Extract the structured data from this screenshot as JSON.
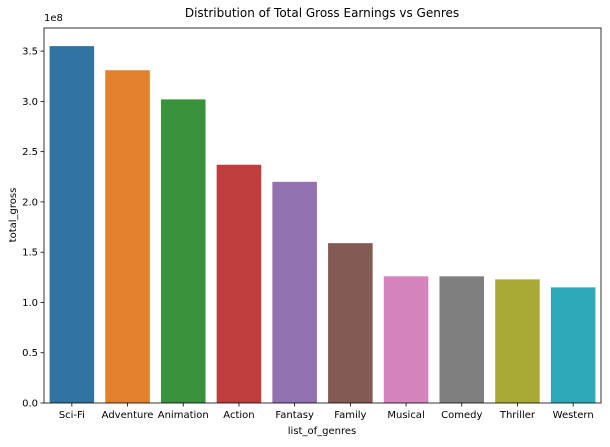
{
  "chart_data": {
    "type": "bar",
    "title": "Distribution of Total Gross Earnings vs Genres",
    "xlabel": "list_of_genres",
    "ylabel": "total_gross",
    "y_offset_label": "1e8",
    "ylim": [
      0,
      3.73
    ],
    "y_ticks": [
      0.0,
      0.5,
      1.0,
      1.5,
      2.0,
      2.5,
      3.0,
      3.5
    ],
    "y_tick_labels": [
      "0.0",
      "0.5",
      "1.0",
      "1.5",
      "2.0",
      "2.5",
      "3.0",
      "3.5"
    ],
    "categories": [
      "Sci-Fi",
      "Adventure",
      "Animation",
      "Action",
      "Fantasy",
      "Family",
      "Musical",
      "Comedy",
      "Thriller",
      "Western"
    ],
    "values": [
      3.55,
      3.31,
      3.02,
      2.37,
      2.2,
      1.59,
      1.26,
      1.26,
      1.23,
      1.15
    ],
    "colors": [
      "#3274a1",
      "#e1812c",
      "#3a923a",
      "#c03d3e",
      "#9372b2",
      "#845b53",
      "#d684bd",
      "#7f7f7f",
      "#a9aa35",
      "#2ea9b8"
    ],
    "grid": false,
    "legend": "none"
  }
}
